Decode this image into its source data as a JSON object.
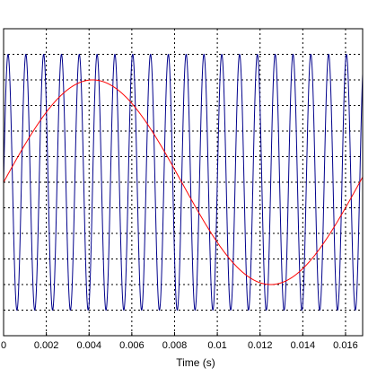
{
  "chart_data": {
    "type": "line",
    "xlabel": "Time (s)",
    "ylabel": "",
    "title": "",
    "xlim": [
      0,
      0.0168
    ],
    "ylim": [
      -1.2,
      1.2
    ],
    "xticks": [
      0,
      0.002,
      0.004,
      0.006,
      0.008,
      0.01,
      0.012,
      0.014,
      0.016
    ],
    "xtick_labels": [
      "0",
      "0.002",
      "0.004",
      "0.006",
      "0.008",
      "0.01",
      "0.012",
      "0.014",
      "0.016"
    ],
    "yticks": [
      -1,
      -0.8,
      -0.6,
      -0.4,
      -0.2,
      0,
      0.2,
      0.4,
      0.6,
      0.8,
      1
    ],
    "grid": true,
    "grid_style": "dotted",
    "series": [
      {
        "color": "#00008b",
        "frequency_hz": 1200,
        "amplitude": 1.0,
        "phase": 0
      },
      {
        "color": "#ff0000",
        "frequency_hz": 60,
        "amplitude": 0.8,
        "phase": 0
      }
    ]
  }
}
